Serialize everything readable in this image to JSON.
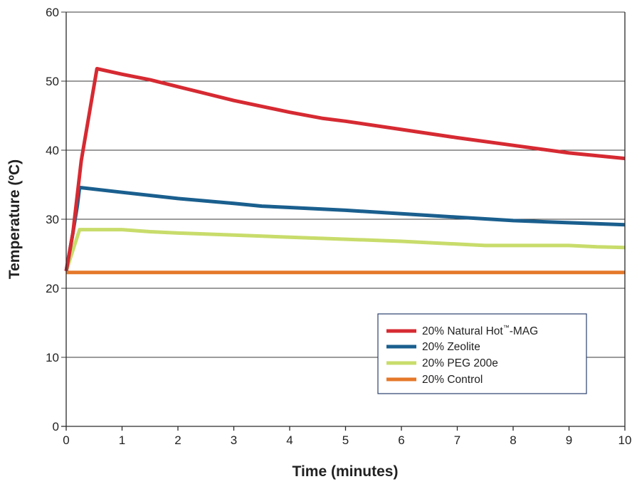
{
  "chart_data": {
    "type": "line",
    "xlabel": "Time (minutes)",
    "ylabel": "Temperature (ºC)",
    "xlim": [
      0,
      10
    ],
    "ylim": [
      0,
      60
    ],
    "xticks": [
      "0",
      "1",
      "2",
      "3",
      "4",
      "5",
      "6",
      "7",
      "8",
      "9",
      "10"
    ],
    "yticks": [
      "0",
      "10",
      "20",
      "30",
      "40",
      "50",
      "60"
    ],
    "grid": "horizontal",
    "legend_position": "lower-right",
    "series": [
      {
        "name": "20% Natural Hot™-MAG",
        "name_main": "20% Natural Hot",
        "name_sup": "™",
        "name_suffix": "-MAG",
        "color": "#d62a32",
        "x": [
          0,
          0.12,
          0.27,
          0.55,
          1.0,
          1.5,
          2.0,
          2.5,
          3.0,
          4.0,
          4.6,
          5.0,
          6.0,
          7.0,
          8.0,
          9.0,
          10.0
        ],
        "y": [
          22.5,
          28.0,
          38.5,
          51.8,
          51.0,
          50.2,
          49.2,
          48.2,
          47.2,
          45.5,
          44.6,
          44.2,
          43.0,
          41.8,
          40.7,
          39.6,
          38.8
        ]
      },
      {
        "name": "20% Zeolite",
        "color": "#1a5f8e",
        "x": [
          0,
          0.12,
          0.2,
          0.24,
          1.0,
          2.0,
          3.0,
          3.5,
          4.0,
          5.0,
          6.0,
          7.0,
          8.0,
          9.0,
          10.0
        ],
        "y": [
          22.5,
          28.0,
          32.0,
          34.6,
          33.9,
          33.0,
          32.3,
          31.9,
          31.7,
          31.3,
          30.8,
          30.3,
          29.8,
          29.5,
          29.2
        ]
      },
      {
        "name": "20% PEG 200e",
        "color": "#c8dc6b",
        "x": [
          0,
          0.12,
          0.24,
          0.5,
          1.0,
          1.5,
          2.0,
          3.0,
          4.0,
          5.0,
          6.0,
          7.0,
          7.5,
          8.0,
          9.0,
          9.5,
          10.0
        ],
        "y": [
          22.5,
          25.5,
          28.5,
          28.5,
          28.5,
          28.2,
          28.0,
          27.7,
          27.4,
          27.1,
          26.8,
          26.4,
          26.2,
          26.2,
          26.2,
          26.0,
          25.9
        ]
      },
      {
        "name": "20% Control",
        "color": "#e5782a",
        "x": [
          0,
          1,
          2,
          3,
          4,
          5,
          6,
          7,
          8,
          9,
          10
        ],
        "y": [
          22.3,
          22.3,
          22.3,
          22.3,
          22.3,
          22.3,
          22.3,
          22.3,
          22.3,
          22.3,
          22.3
        ]
      }
    ]
  },
  "colors": {
    "axis": "#2a2a2a",
    "grid": "#3a3a3a",
    "legend_border": "#2a3f6e"
  }
}
